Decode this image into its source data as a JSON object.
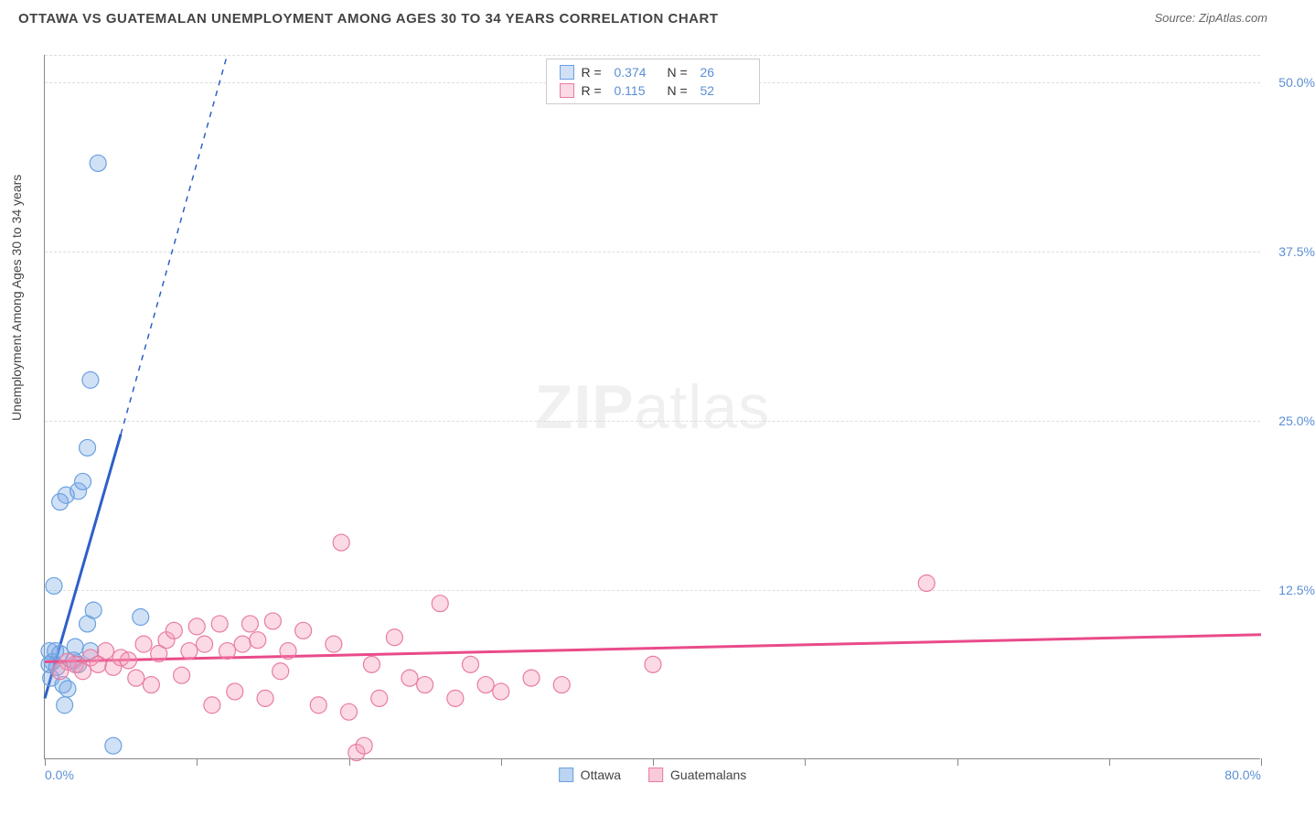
{
  "title": "OTTAWA VS GUATEMALAN UNEMPLOYMENT AMONG AGES 30 TO 34 YEARS CORRELATION CHART",
  "source": "Source: ZipAtlas.com",
  "y_axis_label": "Unemployment Among Ages 30 to 34 years",
  "watermark": {
    "bold": "ZIP",
    "rest": "atlas"
  },
  "chart": {
    "type": "scatter",
    "xlim": [
      0,
      80
    ],
    "ylim": [
      0,
      52
    ],
    "x_ticks": [
      0,
      10,
      20,
      30,
      40,
      50,
      60,
      70,
      80
    ],
    "x_tick_labels": {
      "0": "0.0%",
      "80": "80.0%"
    },
    "y_ticks": [
      12.5,
      25.0,
      37.5,
      50.0
    ],
    "y_tick_labels": [
      "12.5%",
      "25.0%",
      "37.5%",
      "50.0%"
    ],
    "grid_color": "#dddddd",
    "axis_color": "#888888",
    "background_color": "#ffffff",
    "series": [
      {
        "name": "Ottawa",
        "color_fill": "rgba(120,170,230,0.35)",
        "color_stroke": "#6aa0e0",
        "marker_radius": 9,
        "trend_color": "#2e5fc9",
        "trend_width": 3,
        "trend_dash_extend": true,
        "trend": {
          "x1": 0,
          "y1": 4.5,
          "x2": 5,
          "y2": 24,
          "x3": 12,
          "y3": 52
        },
        "stats": {
          "R": "0.374",
          "N": "26"
        },
        "points": [
          [
            0.3,
            7.0
          ],
          [
            0.5,
            7.2
          ],
          [
            0.4,
            6.0
          ],
          [
            0.3,
            8.0
          ],
          [
            0.7,
            8.0
          ],
          [
            0.8,
            6.8
          ],
          [
            1.0,
            7.8
          ],
          [
            1.2,
            5.5
          ],
          [
            1.3,
            4.0
          ],
          [
            1.9,
            7.3
          ],
          [
            2.0,
            8.3
          ],
          [
            2.2,
            7.0
          ],
          [
            2.8,
            10.0
          ],
          [
            3.0,
            8.0
          ],
          [
            3.2,
            11.0
          ],
          [
            1.0,
            19.0
          ],
          [
            1.4,
            19.5
          ],
          [
            2.2,
            19.8
          ],
          [
            2.5,
            20.5
          ],
          [
            2.8,
            23.0
          ],
          [
            3.0,
            28.0
          ],
          [
            3.5,
            44.0
          ],
          [
            6.3,
            10.5
          ],
          [
            4.5,
            1.0
          ],
          [
            1.5,
            5.2
          ],
          [
            0.6,
            12.8
          ]
        ]
      },
      {
        "name": "Guatemalans",
        "color_fill": "rgba(245,150,180,0.35)",
        "color_stroke": "#e87ca0",
        "marker_radius": 9,
        "trend_color": "#e94b8a",
        "trend_width": 3,
        "trend_dash_extend": false,
        "trend": {
          "x1": 0,
          "y1": 7.2,
          "x2": 80,
          "y2": 9.2
        },
        "stats": {
          "R": "0.115",
          "N": "52"
        },
        "points": [
          [
            1.5,
            7.2
          ],
          [
            2.0,
            7.0
          ],
          [
            2.5,
            6.5
          ],
          [
            3.0,
            7.5
          ],
          [
            3.5,
            7.0
          ],
          [
            4.0,
            8.0
          ],
          [
            4.5,
            6.8
          ],
          [
            5.0,
            7.5
          ],
          [
            5.5,
            7.3
          ],
          [
            6.0,
            6.0
          ],
          [
            6.5,
            8.5
          ],
          [
            7.0,
            5.5
          ],
          [
            7.5,
            7.8
          ],
          [
            8.0,
            8.8
          ],
          [
            8.5,
            9.5
          ],
          [
            9.0,
            6.2
          ],
          [
            9.5,
            8.0
          ],
          [
            10.0,
            9.8
          ],
          [
            10.5,
            8.5
          ],
          [
            11.0,
            4.0
          ],
          [
            11.5,
            10.0
          ],
          [
            12.0,
            8.0
          ],
          [
            12.5,
            5.0
          ],
          [
            13.0,
            8.5
          ],
          [
            13.5,
            10.0
          ],
          [
            14.0,
            8.8
          ],
          [
            14.5,
            4.5
          ],
          [
            15.0,
            10.2
          ],
          [
            15.5,
            6.5
          ],
          [
            16.0,
            8.0
          ],
          [
            17.0,
            9.5
          ],
          [
            18.0,
            4.0
          ],
          [
            19.0,
            8.5
          ],
          [
            19.5,
            16.0
          ],
          [
            20.0,
            3.5
          ],
          [
            20.5,
            0.5
          ],
          [
            21.0,
            1.0
          ],
          [
            21.5,
            7.0
          ],
          [
            22.0,
            4.5
          ],
          [
            23.0,
            9.0
          ],
          [
            24.0,
            6.0
          ],
          [
            25.0,
            5.5
          ],
          [
            26.0,
            11.5
          ],
          [
            27.0,
            4.5
          ],
          [
            28.0,
            7.0
          ],
          [
            29.0,
            5.5
          ],
          [
            30.0,
            5.0
          ],
          [
            32.0,
            6.0
          ],
          [
            34.0,
            5.5
          ],
          [
            40.0,
            7.0
          ],
          [
            58.0,
            13.0
          ],
          [
            1.0,
            6.5
          ]
        ]
      }
    ],
    "bottom_legend": [
      {
        "swatch_fill": "rgba(120,170,230,0.5)",
        "swatch_stroke": "#6aa0e0",
        "label": "Ottawa"
      },
      {
        "swatch_fill": "rgba(245,150,180,0.5)",
        "swatch_stroke": "#e87ca0",
        "label": "Guatemalans"
      }
    ]
  }
}
